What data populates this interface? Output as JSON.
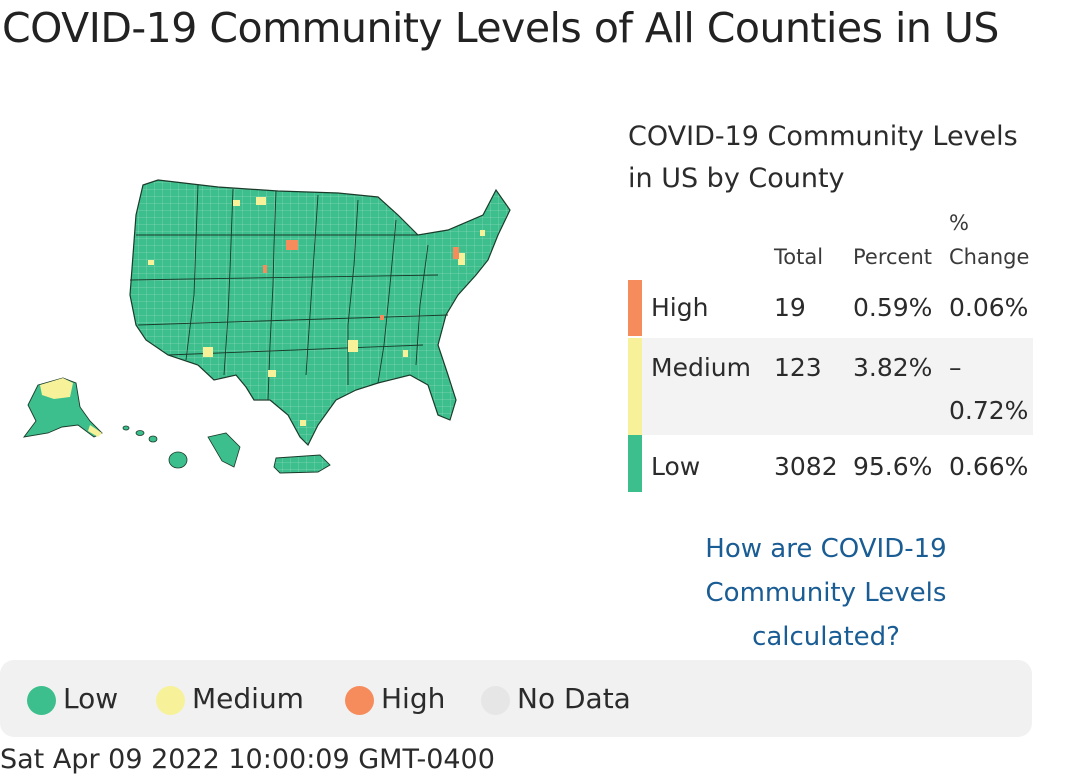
{
  "page": {
    "title": "COVID-19 Community Levels of All Counties in US",
    "timestamp": "Sat Apr 09 2022 10:00:09 GMT-0400"
  },
  "colors": {
    "low": "#3dbf8d",
    "medium": "#f7f19a",
    "high": "#f68c5b",
    "no_data": "#e6e6e6",
    "link": "#1a5c94"
  },
  "summary": {
    "title_line1": "COVID-19 Community Levels",
    "title_line2": "in US by County",
    "headers": {
      "total": "Total",
      "percent": "Percent",
      "change_line1": "%",
      "change_line2": "Change"
    },
    "rows": [
      {
        "level": "High",
        "total": "19",
        "percent": "0.59%",
        "change": "0.06%",
        "color": "#f68c5b"
      },
      {
        "level": "Medium",
        "total": "123",
        "percent": "3.82%",
        "change_line1": "–",
        "change_line2": "0.72%",
        "color": "#f7f19a"
      },
      {
        "level": "Low",
        "total": "3082",
        "percent": "95.6%",
        "change": "0.66%",
        "color": "#3dbf8d"
      }
    ],
    "link_line1": "How are COVID-19",
    "link_line2": "Community Levels",
    "link_line3": "calculated?"
  },
  "legend": [
    {
      "label": "Low",
      "color": "#3dbf8d"
    },
    {
      "label": "Medium",
      "color": "#f7f19a"
    },
    {
      "label": "High",
      "color": "#f68c5b"
    },
    {
      "label": "No Data",
      "color": "#e6e6e6"
    }
  ]
}
